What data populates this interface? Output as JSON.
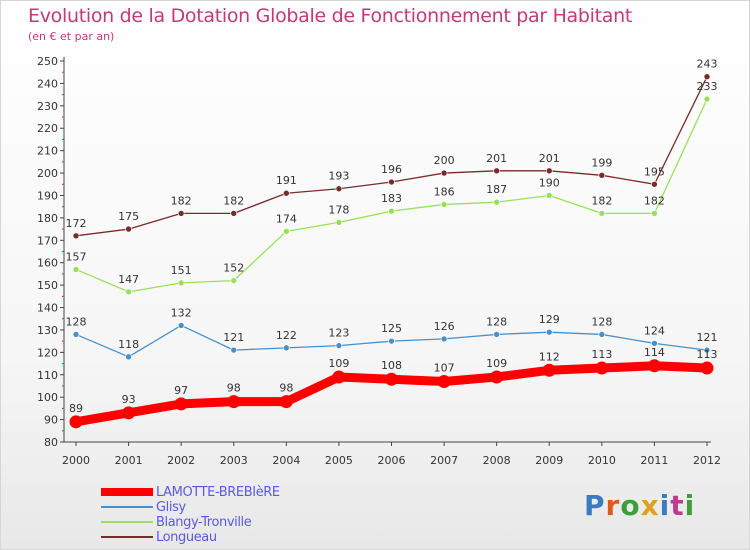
{
  "title": "Evolution de la Dotation Globale de Fonctionnement par Habitant",
  "subtitle": "(en € et par an)",
  "logo": {
    "text": "Proxiti",
    "colors": [
      "#3a7cc0",
      "#e05a20",
      "#3aa03a",
      "#e0a020",
      "#3a7cc0",
      "#c03a90",
      "#3aa03a"
    ]
  },
  "chart_data": {
    "type": "line",
    "title": "Evolution de la Dotation Globale de Fonctionnement par Habitant",
    "ylabel": "(en € et par an)",
    "xlabel": "",
    "x": [
      2000,
      2001,
      2002,
      2003,
      2004,
      2005,
      2006,
      2007,
      2008,
      2009,
      2010,
      2011,
      2012
    ],
    "ylim": [
      80,
      250
    ],
    "yticks": [
      80,
      90,
      100,
      110,
      120,
      130,
      140,
      150,
      160,
      170,
      180,
      190,
      200,
      210,
      220,
      230,
      240,
      250
    ],
    "grid": false,
    "legend": "bottom-left",
    "series": [
      {
        "name": "LAMOTTE-BREBIèRE",
        "color": "#ff0000",
        "values": [
          89,
          93,
          97,
          98,
          98,
          109,
          108,
          107,
          109,
          112,
          113,
          114,
          113
        ]
      },
      {
        "name": "Glisy",
        "color": "#4a90c8",
        "values": [
          128,
          118,
          132,
          121,
          122,
          123,
          125,
          126,
          128,
          129,
          128,
          124,
          121
        ]
      },
      {
        "name": "Blangy-Tronville",
        "color": "#99e05a",
        "values": [
          157,
          147,
          151,
          152,
          174,
          178,
          183,
          186,
          187,
          190,
          182,
          182,
          233
        ]
      },
      {
        "name": "Longueau",
        "color": "#7a2a2a",
        "values": [
          172,
          175,
          182,
          182,
          191,
          193,
          196,
          200,
          201,
          201,
          199,
          195,
          243
        ]
      }
    ]
  }
}
